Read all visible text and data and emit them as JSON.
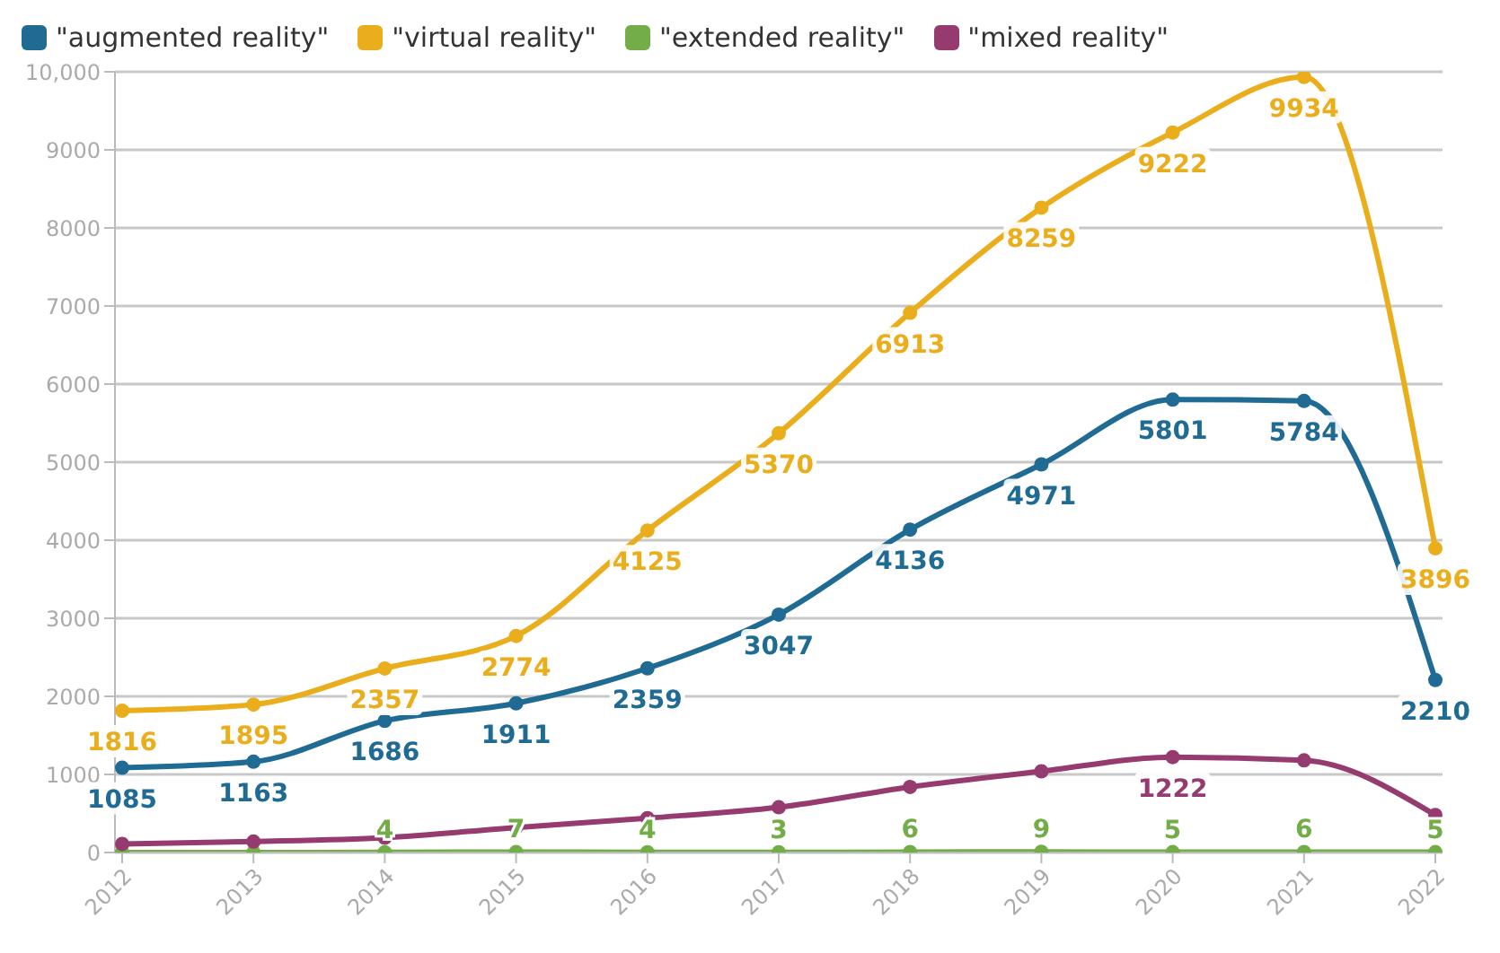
{
  "chart_data": {
    "type": "line",
    "categories": [
      "2012",
      "2013",
      "2014",
      "2015",
      "2016",
      "2017",
      "2018",
      "2019",
      "2020",
      "2021",
      "2022"
    ],
    "series": [
      {
        "name": "\"augmented reality\"",
        "color": "#1f6b93",
        "values": [
          1085,
          1163,
          1686,
          1911,
          2359,
          3047,
          4136,
          4971,
          5801,
          5784,
          2210
        ],
        "value_labels": [
          "1085",
          "1163",
          "1686",
          "1911",
          "2359",
          "3047",
          "4136",
          "4971",
          "5801",
          "5784",
          "2210"
        ]
      },
      {
        "name": "\"virtual reality\"",
        "color": "#eaae1c",
        "values": [
          1816,
          1895,
          2357,
          2774,
          4125,
          5370,
          6913,
          8259,
          9222,
          9934,
          3896
        ],
        "value_labels": [
          "1816",
          "1895",
          "2357",
          "2774",
          "4125",
          "5370",
          "6913",
          "8259",
          "9222",
          "9934",
          "3896"
        ]
      },
      {
        "name": "\"extended reality\"",
        "color": "#72ad47",
        "values": [
          0,
          0,
          4,
          7,
          4,
          3,
          6,
          9,
          5,
          6,
          5
        ],
        "value_labels": [
          null,
          null,
          "4",
          "7",
          "4",
          "3",
          "6",
          "9",
          "5",
          "6",
          "5"
        ]
      },
      {
        "name": "\"mixed reality\"",
        "color": "#963b6f",
        "values": [
          110,
          140,
          190,
          320,
          440,
          580,
          840,
          1040,
          1222,
          1180,
          480
        ],
        "value_labels": [
          null,
          null,
          null,
          null,
          null,
          null,
          null,
          null,
          "1222",
          null,
          null
        ]
      }
    ],
    "ylim": [
      0,
      10000
    ],
    "yticks": [
      0,
      1000,
      2000,
      3000,
      4000,
      5000,
      6000,
      7000,
      8000,
      9000,
      {
        "value": 10000,
        "label": "10,000"
      }
    ],
    "grid": "y",
    "legend": "top left",
    "marker": "circle",
    "line_style": "solid"
  }
}
